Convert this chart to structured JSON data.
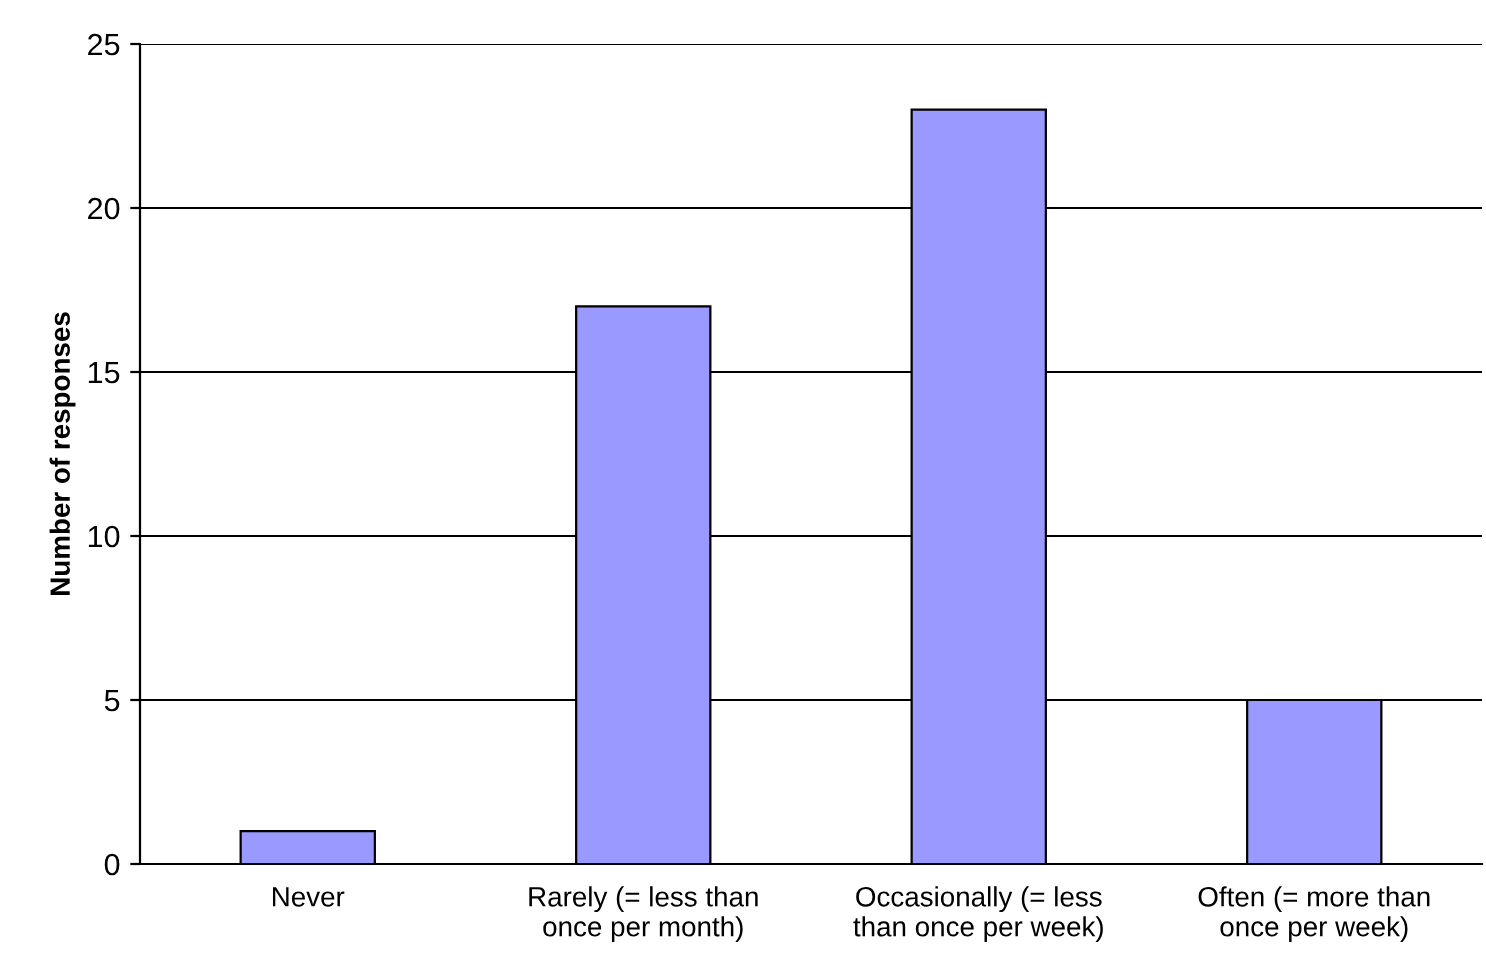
{
  "chart_data": {
    "type": "bar",
    "ylabel": "Number of responses",
    "categories": [
      "Never",
      "Rarely (= less than\nonce per month)",
      "Occasionally (= less\nthan once per week)",
      "Often (= more than\nonce per week)"
    ],
    "values": [
      1,
      17,
      23,
      5
    ],
    "color": "#9999ff",
    "ylim": [
      0,
      25
    ],
    "yticks": [
      0,
      5,
      10,
      15,
      20,
      25
    ],
    "grid": "y",
    "legend": false
  }
}
